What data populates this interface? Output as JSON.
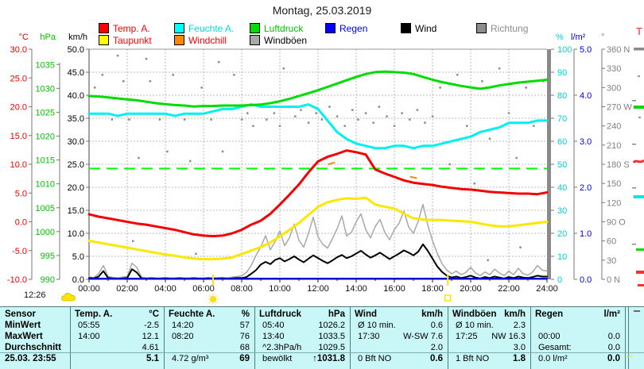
{
  "title": "Montag, 25.03.2019",
  "legend": {
    "items": [
      {
        "label": "Temp. A.",
        "swatch": "#ff0000",
        "text": "#ff0000",
        "row": 0,
        "col": 0
      },
      {
        "label": "Feuchte A.",
        "swatch": "#00ffff",
        "text": "#00dede",
        "row": 0,
        "col": 1
      },
      {
        "label": "Luftdruck",
        "swatch": "#00dc00",
        "text": "#00c800",
        "row": 0,
        "col": 2
      },
      {
        "label": "Regen",
        "swatch": "#0000ff",
        "text": "#0000e6",
        "row": 0,
        "col": 3
      },
      {
        "label": "Wind",
        "swatch": "#000000",
        "text": "#000000",
        "row": 0,
        "col": 4
      },
      {
        "label": "Richtung",
        "swatch": "#8c8c8c",
        "text": "#8c8c8c",
        "row": 0,
        "col": 5
      },
      {
        "label": "Taupunkt",
        "swatch": "#ffff00",
        "text": "#ff0000",
        "row": 1,
        "col": 0
      },
      {
        "label": "Windchill",
        "swatch": "#ff8800",
        "text": "#ff0000",
        "row": 1,
        "col": 1
      },
      {
        "label": "Windböen",
        "swatch": "#a8a8a8",
        "text": "#000000",
        "row": 1,
        "col": 2
      }
    ]
  },
  "axes": {
    "celsius": {
      "unit": "°C",
      "color": "#f00000",
      "labels": [
        "30.0",
        "25.0",
        "20.0",
        "15.0",
        "10.0",
        "5.0",
        "0.0",
        "-5.0",
        "-10.0"
      ],
      "values": [
        30,
        25,
        20,
        15,
        10,
        5,
        0,
        -5,
        -10
      ]
    },
    "hpa": {
      "unit": "hPa",
      "color": "#00c400",
      "labels": [
        "1035",
        "1030",
        "1025",
        "1020",
        "1015",
        "1010",
        "1005",
        "1000",
        "995",
        "990"
      ],
      "values": [
        1035,
        1030,
        1025,
        1020,
        1015,
        1010,
        1005,
        1000,
        995,
        990
      ]
    },
    "kmh": {
      "unit": "km/h",
      "color": "#000000",
      "labels": [
        "50.0",
        "45.0",
        "40.0",
        "35.0",
        "30.0",
        "25.0",
        "20.0",
        "15.0",
        "10.0",
        "5.0",
        "0.0"
      ],
      "values": [
        50,
        45,
        40,
        35,
        30,
        25,
        20,
        15,
        10,
        5,
        0
      ]
    },
    "percent": {
      "unit": "%",
      "color": "#00d2d2",
      "labels": [
        "100",
        "90",
        "80",
        "70",
        "60",
        "50",
        "40",
        "30",
        "20",
        "10",
        "0"
      ],
      "values": [
        100,
        90,
        80,
        70,
        60,
        50,
        40,
        30,
        20,
        10,
        0
      ]
    },
    "lm2": {
      "unit": "l/m²",
      "color": "#0000e0",
      "labels": [
        "5.0",
        "4.0",
        "3.0",
        "2.0",
        "1.0",
        "0.0"
      ],
      "values": [
        5,
        4,
        3,
        2,
        1,
        0
      ]
    },
    "deg": {
      "unit": "°",
      "color": "#808080",
      "labels": [
        "360 N",
        "330",
        "300",
        "270 W",
        "240",
        "210",
        "180 S",
        "150",
        "120",
        "90 O",
        "60",
        "30",
        "0 N"
      ],
      "values": [
        360,
        330,
        300,
        270,
        240,
        210,
        180,
        150,
        120,
        90,
        60,
        30,
        0
      ]
    }
  },
  "chart_data": {
    "type": "line",
    "title": "Montag, 25.03.2019",
    "x_unit": "hours",
    "x_labels": [
      "00:00",
      "02:00",
      "04:00",
      "06:00",
      "08:00",
      "10:00",
      "12:00",
      "14:00",
      "16:00",
      "18:00",
      "20:00",
      "22:00",
      "24:00"
    ],
    "reference_line": {
      "name": "Normaldruck",
      "value_hpa": 1013.2,
      "color": "#00ff00"
    },
    "series": [
      {
        "name": "Windböen",
        "unit": "km/h",
        "color": "#a8a8a8",
        "width": 1.5,
        "scale": [
          0,
          50
        ],
        "step_h": 0.25,
        "values": [
          0.5,
          0.4,
          1.2,
          3.0,
          0.6,
          0.4,
          0.3,
          0.5,
          0.6,
          3.5,
          2.6,
          0.5,
          0.3,
          0.4,
          0.3,
          0.3,
          0.4,
          0.3,
          0.3,
          0.4,
          0.3,
          0.3,
          0.4,
          0.3,
          0.3,
          0.4,
          0.3,
          0.4,
          0.4,
          0.3,
          0.5,
          0.6,
          0.8,
          1.5,
          3.0,
          5.2,
          7.0,
          9.5,
          6.4,
          8.2,
          10.5,
          7.3,
          9.0,
          12.0,
          8.5,
          7.0,
          10.0,
          13.5,
          9.2,
          7.6,
          6.8,
          8.8,
          11.0,
          13.8,
          9.4,
          10.2,
          12.5,
          14.2,
          10.8,
          9.0,
          11.5,
          13.0,
          10.2,
          8.6,
          10.8,
          12.2,
          14.8,
          11.4,
          10.0,
          12.6,
          16.3,
          11.8,
          8.4,
          5.6,
          3.4,
          2.0,
          1.2,
          1.8,
          1.0,
          1.5,
          2.6,
          1.4,
          0.8,
          1.6,
          1.0,
          2.2,
          1.4,
          0.8,
          1.8,
          1.0,
          2.4,
          1.2,
          0.9,
          1.6,
          3.0,
          2.0,
          1.8
        ]
      },
      {
        "name": "Wind",
        "unit": "km/h",
        "color": "#000000",
        "width": 2,
        "scale": [
          0,
          50
        ],
        "step_h": 0.25,
        "values": [
          0.3,
          0.2,
          0.6,
          1.8,
          0.3,
          0.2,
          0.1,
          0.2,
          0.3,
          2.2,
          1.5,
          0.2,
          0.1,
          0.2,
          0.1,
          0.1,
          0.2,
          0.1,
          0.1,
          0.2,
          0.1,
          0.1,
          0.2,
          0.1,
          0.1,
          0.2,
          0.1,
          0.1,
          0.2,
          0.1,
          0.2,
          0.3,
          0.3,
          0.5,
          1.2,
          2.0,
          3.2,
          3.8,
          3.3,
          4.2,
          4.6,
          3.9,
          4.4,
          5.0,
          4.3,
          3.7,
          4.5,
          5.2,
          4.6,
          4.0,
          3.5,
          4.1,
          4.8,
          5.3,
          4.6,
          5.0,
          5.6,
          6.2,
          5.4,
          4.7,
          5.2,
          5.8,
          5.1,
          4.4,
          5.0,
          5.6,
          6.3,
          5.8,
          5.2,
          6.0,
          7.6,
          6.2,
          4.5,
          2.8,
          1.6,
          0.8,
          0.4,
          0.6,
          0.3,
          0.5,
          0.8,
          0.4,
          0.2,
          0.5,
          0.3,
          0.6,
          0.4,
          0.2,
          0.5,
          0.3,
          0.6,
          0.4,
          0.3,
          0.5,
          0.8,
          0.6,
          0.6
        ]
      },
      {
        "name": "Regen",
        "unit": "l/m²",
        "color": "#0000cc",
        "width": 2,
        "scale": [
          0,
          5
        ],
        "step_h": 12,
        "values": [
          0,
          0,
          0
        ]
      },
      {
        "name": "Taupunkt",
        "unit": "°C",
        "color": "#fae800",
        "width": 3,
        "scale": [
          -10,
          30
        ],
        "step_h": 0.5,
        "values": [
          -3.3,
          -3.6,
          -3.9,
          -4.2,
          -4.5,
          -4.8,
          -5.1,
          -5.4,
          -5.7,
          -5.9,
          -6.2,
          -6.4,
          -6.5,
          -6.5,
          -6.4,
          -6.2,
          -5.6,
          -5.0,
          -4.4,
          -3.6,
          -2.5,
          -1.4,
          -0.2,
          1.2,
          2.6,
          3.4,
          3.8,
          4.1,
          4.0,
          4.2,
          3.0,
          2.6,
          2.3,
          1.4,
          0.6,
          0.4,
          0.3,
          0.3,
          0.2,
          0.1,
          0.0,
          -0.3,
          -0.6,
          -0.8,
          -0.8,
          -0.6,
          -0.4,
          -0.2,
          0.0
        ]
      },
      {
        "name": "Feuchte A.",
        "unit": "%",
        "color": "#00f0f0",
        "width": 3,
        "scale": [
          0,
          100
        ],
        "step_h": 0.5,
        "values": [
          72,
          72,
          72,
          71,
          72,
          72,
          72,
          72,
          72,
          71,
          72,
          72,
          72,
          73,
          74,
          74,
          75,
          76,
          75,
          75,
          75,
          75,
          75,
          76,
          74,
          69,
          64,
          61,
          59,
          58,
          57,
          57,
          58,
          58,
          57,
          58,
          58,
          59,
          60,
          61,
          62,
          64,
          65,
          66,
          68,
          68,
          68,
          69,
          69
        ]
      },
      {
        "name": "Luftdruck",
        "unit": "hPa",
        "color": "#00dc00",
        "width": 3,
        "scale": [
          990,
          1038.2
        ],
        "step_h": 0.5,
        "values": [
          1028.4,
          1028.3,
          1028.1,
          1027.9,
          1027.7,
          1027.5,
          1027.2,
          1026.9,
          1026.7,
          1026.5,
          1026.4,
          1026.2,
          1026.3,
          1026.3,
          1026.4,
          1026.4,
          1026.4,
          1026.5,
          1026.6,
          1026.9,
          1027.3,
          1027.8,
          1028.4,
          1029.0,
          1029.6,
          1030.3,
          1031.0,
          1031.7,
          1032.4,
          1033.0,
          1033.4,
          1033.5,
          1033.4,
          1033.3,
          1033.0,
          1032.4,
          1031.8,
          1031.3,
          1030.9,
          1030.5,
          1030.2,
          1029.9,
          1030.2,
          1030.6,
          1030.9,
          1031.2,
          1031.4,
          1031.6,
          1031.8
        ]
      },
      {
        "name": "Windchill",
        "unit": "°C",
        "color": "#ff8800",
        "width": 2,
        "scale": [
          -10,
          30
        ],
        "segments": [
          [
            [
              12.55,
              10.0
            ],
            [
              12.85,
              10.3
            ]
          ],
          [
            [
              16.85,
              7.8
            ],
            [
              17.15,
              7.6
            ]
          ]
        ]
      },
      {
        "name": "Temp. A.",
        "unit": "°C",
        "color": "#f50000",
        "width": 3,
        "scale": [
          -10,
          30
        ],
        "step_h": 0.5,
        "values": [
          1.3,
          0.9,
          0.6,
          0.3,
          0.0,
          -0.3,
          -0.5,
          -0.8,
          -1.1,
          -1.4,
          -1.8,
          -2.2,
          -2.4,
          -2.5,
          -2.4,
          -2.0,
          -1.4,
          -0.5,
          0.2,
          1.4,
          3.0,
          4.7,
          6.5,
          8.6,
          10.5,
          11.3,
          11.8,
          12.4,
          12.1,
          11.7,
          9.1,
          8.4,
          7.8,
          7.2,
          6.8,
          6.6,
          6.4,
          6.1,
          5.9,
          5.7,
          5.6,
          5.4,
          5.2,
          5.1,
          5.0,
          4.9,
          4.9,
          4.8,
          5.1
        ]
      }
    ],
    "richtung_scatter": {
      "name": "Richtung",
      "unit": "°",
      "color": "#8c8c8c",
      "scale": [
        0,
        360
      ],
      "points": [
        [
          0.3,
          300
        ],
        [
          0.7,
          320
        ],
        [
          1.2,
          250
        ],
        [
          1.5,
          350
        ],
        [
          1.8,
          310
        ],
        [
          2.1,
          250
        ],
        [
          2.3,
          60
        ],
        [
          2.6,
          190
        ],
        [
          3.0,
          345
        ],
        [
          3.2,
          310
        ],
        [
          3.7,
          250
        ],
        [
          4.1,
          200
        ],
        [
          4.4,
          320
        ],
        [
          5.0,
          250
        ],
        [
          5.3,
          185
        ],
        [
          5.6,
          40
        ],
        [
          5.9,
          300
        ],
        [
          6.4,
          250
        ],
        [
          6.8,
          340
        ],
        [
          7.0,
          200
        ],
        [
          7.6,
          320
        ],
        [
          8.0,
          250
        ],
        [
          8.3,
          260
        ],
        [
          8.6,
          240
        ],
        [
          9.0,
          270
        ],
        [
          9.3,
          250
        ],
        [
          9.7,
          260
        ],
        [
          10.0,
          240
        ],
        [
          10.2,
          330
        ],
        [
          10.4,
          270
        ],
        [
          10.8,
          255
        ],
        [
          11.1,
          265
        ],
        [
          11.5,
          245
        ],
        [
          11.9,
          260
        ],
        [
          12.2,
          250
        ],
        [
          12.6,
          270
        ],
        [
          13.0,
          255
        ],
        [
          13.4,
          240
        ],
        [
          13.8,
          265
        ],
        [
          14.1,
          250
        ],
        [
          14.5,
          260
        ],
        [
          14.9,
          245
        ],
        [
          15.2,
          270
        ],
        [
          15.6,
          255
        ],
        [
          16.0,
          240
        ],
        [
          16.4,
          260
        ],
        [
          16.8,
          250
        ],
        [
          17.2,
          265
        ],
        [
          17.6,
          245
        ],
        [
          18.0,
          255
        ],
        [
          18.4,
          300
        ],
        [
          18.9,
          180
        ],
        [
          19.3,
          320
        ],
        [
          19.8,
          240
        ],
        [
          20.2,
          150
        ],
        [
          20.6,
          310
        ],
        [
          20.9,
          30
        ],
        [
          21.0,
          220
        ],
        [
          21.5,
          330
        ],
        [
          22.0,
          260
        ],
        [
          22.4,
          190
        ],
        [
          22.6,
          50
        ],
        [
          22.9,
          300
        ],
        [
          23.3,
          240
        ],
        [
          23.8,
          310
        ]
      ]
    }
  },
  "markers": {
    "sunrise_hour": 6.5,
    "sunset_hour": 18.8,
    "current_time": "12:26"
  },
  "right_cutoff": {
    "label": "T",
    "color": "#ff2020"
  },
  "table": {
    "row_labels": [
      "Sensor",
      "MinWert",
      "MaxWert",
      "Durchschnitt",
      "25.03. 23:55"
    ],
    "columns": [
      {
        "header": "Temp. A.",
        "unit": "°C",
        "rows": [
          [
            "05:55",
            "-2.5"
          ],
          [
            "14:00",
            "12.1"
          ],
          [
            "",
            "4.61"
          ],
          [
            "",
            "5.1"
          ]
        ]
      },
      {
        "header": "Feuchte A.",
        "unit": "%",
        "rows": [
          [
            "14:20",
            "57"
          ],
          [
            "08:20",
            "76"
          ],
          [
            "",
            "68"
          ],
          [
            "4.72 g/m³",
            "69"
          ]
        ]
      },
      {
        "header": "Luftdruck",
        "unit": "hPa",
        "rows": [
          [
            "05:40",
            "1026.2"
          ],
          [
            "13:40",
            "1033.5"
          ],
          [
            "^2.3hPa/h",
            "1029.5"
          ],
          [
            "bewölkt",
            "↑1031.8"
          ]
        ]
      },
      {
        "header": "Wind",
        "unit": "km/h",
        "rows": [
          [
            "Ø 10 min.",
            "0.6"
          ],
          [
            "17:30",
            "W-SW 7.6"
          ],
          [
            "",
            "2.0"
          ],
          [
            "0 Bft NO",
            "0.6"
          ]
        ]
      },
      {
        "header": "Windböen",
        "unit": "km/h",
        "rows": [
          [
            "Ø 10 min.",
            "2.3"
          ],
          [
            "17:25",
            "NW 16.3"
          ],
          [
            "",
            "3.0"
          ],
          [
            "1 Bft NO",
            "1.8"
          ]
        ]
      },
      {
        "header": "Regen",
        "unit": "l/m²",
        "rows": [
          [
            "",
            ""
          ],
          [
            "00:00",
            "0.0"
          ],
          [
            "Gesamt:",
            "0.0"
          ],
          [
            "0.0 l/m²",
            "0.0"
          ]
        ]
      }
    ]
  }
}
